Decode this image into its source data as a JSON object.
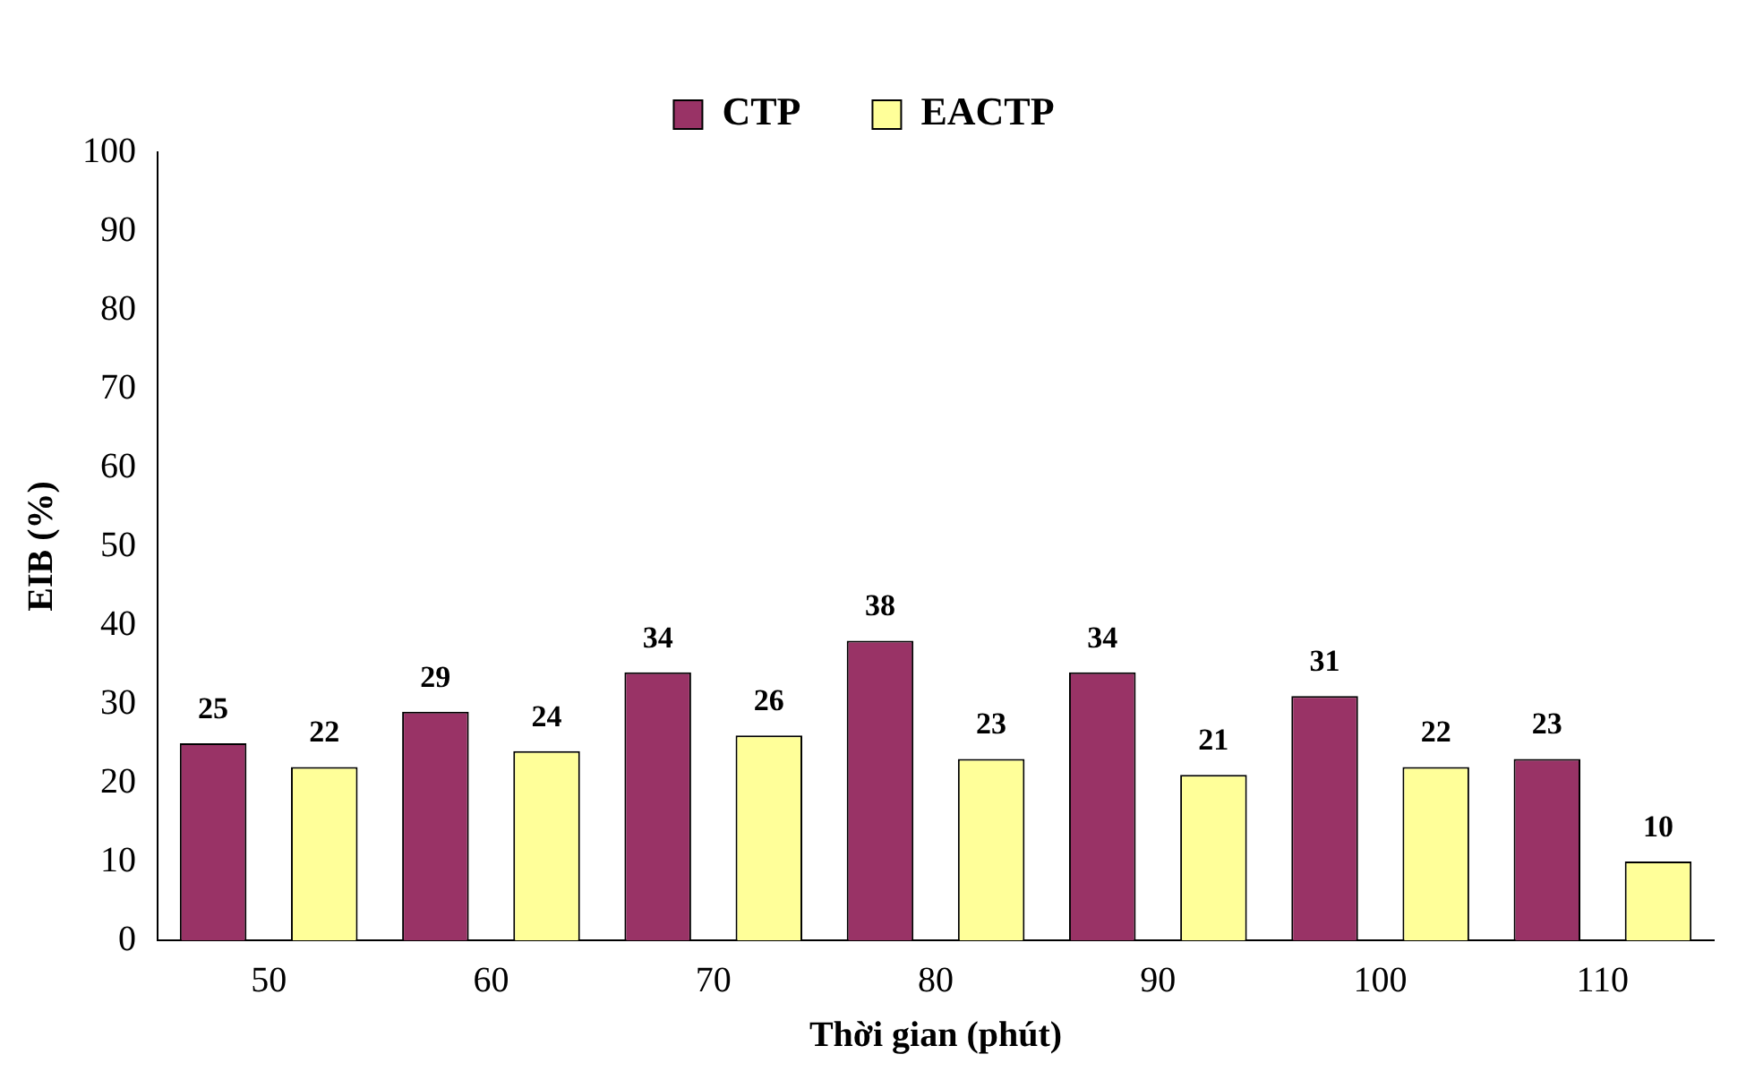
{
  "chart_data": {
    "type": "bar",
    "xlabel": "Thời gian (phút)",
    "ylabel": "EIB (%)",
    "categories": [
      "50",
      "60",
      "70",
      "80",
      "90",
      "100",
      "110"
    ],
    "series": [
      {
        "name": "CTP",
        "color": "#993366",
        "values": [
          25,
          29,
          34,
          38,
          34,
          31,
          23
        ]
      },
      {
        "name": "EACTP",
        "color": "#ffff99",
        "values": [
          22,
          24,
          26,
          23,
          21,
          22,
          10
        ]
      }
    ],
    "ylim": [
      0,
      100
    ],
    "yticks": [
      0,
      10,
      20,
      30,
      40,
      50,
      60,
      70,
      80,
      90,
      100
    ],
    "grid": false,
    "legend": "top",
    "data_labels": true
  }
}
